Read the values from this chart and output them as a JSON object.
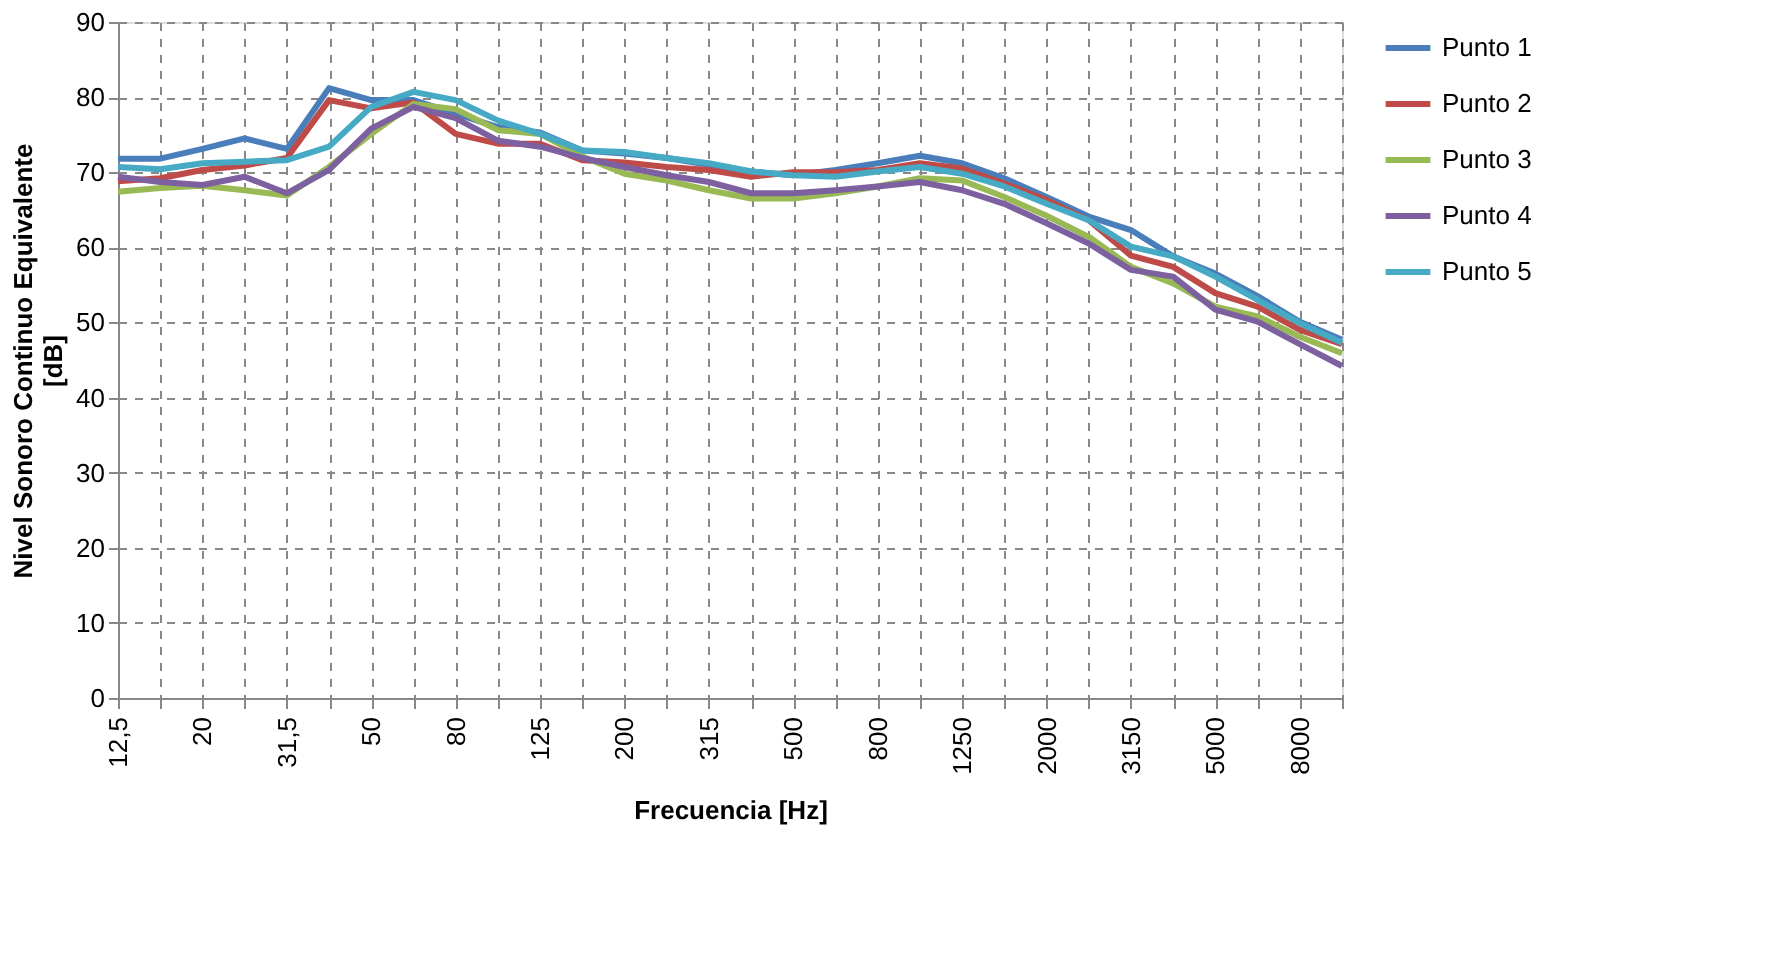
{
  "chart_data": {
    "type": "line",
    "xlabel": "Frecuencia [Hz]",
    "ylabel": "Nivel  Sonoro Continuo Equivalente [dB]",
    "categories": [
      "12,5",
      null,
      "20",
      null,
      "31,5",
      null,
      "50",
      null,
      "80",
      null,
      "125",
      null,
      "200",
      null,
      "315",
      null,
      "500",
      null,
      "800",
      null,
      "1250",
      null,
      "2000",
      null,
      "3150",
      null,
      "5000",
      null,
      "8000",
      null
    ],
    "series": [
      {
        "name": "Punto 1",
        "color": "#4a7ebb",
        "values": [
          71.8,
          71.8,
          73.1,
          74.5,
          73.1,
          81.2,
          79.6,
          79.6,
          77.8,
          76.0,
          75.3,
          72.9,
          72.5,
          71.9,
          71.0,
          70.1,
          69.6,
          70.3,
          71.2,
          72.2,
          71.2,
          69.2,
          66.7,
          64.1,
          62.3,
          58.8,
          56.5,
          53.5,
          50.1,
          47.7
        ]
      },
      {
        "name": "Punto 2",
        "color": "#be4b48",
        "values": [
          68.8,
          69.2,
          70.3,
          70.9,
          71.9,
          79.6,
          78.5,
          79.3,
          75.1,
          73.8,
          73.8,
          71.6,
          71.3,
          70.7,
          70.3,
          69.4,
          70.0,
          70.0,
          70.3,
          71.2,
          70.5,
          68.5,
          66.3,
          63.6,
          58.9,
          57.4,
          53.9,
          52.1,
          49.0,
          47.1
        ]
      },
      {
        "name": "Punto 3",
        "color": "#98b954",
        "values": [
          67.4,
          67.9,
          68.2,
          67.6,
          66.9,
          70.7,
          75.1,
          79.1,
          78.4,
          75.6,
          75.1,
          72.1,
          69.8,
          68.9,
          67.6,
          66.5,
          66.5,
          67.2,
          68.1,
          69.2,
          68.9,
          66.7,
          64.2,
          61.4,
          57.4,
          55.2,
          52.1,
          50.8,
          48.1,
          45.9
        ]
      },
      {
        "name": "Punto 4",
        "color": "#7d60a0",
        "values": [
          69.4,
          68.7,
          68.3,
          69.4,
          67.2,
          70.3,
          75.8,
          78.7,
          77.2,
          74.2,
          73.4,
          71.9,
          70.7,
          69.6,
          68.7,
          67.2,
          67.2,
          67.6,
          68.1,
          68.7,
          67.6,
          65.8,
          63.2,
          60.5,
          57.0,
          56.1,
          51.7,
          50.1,
          47.1,
          44.2
        ]
      },
      {
        "name": "Punto 5",
        "color": "#46aac5",
        "values": [
          70.7,
          70.4,
          71.2,
          71.4,
          71.6,
          73.4,
          78.7,
          80.7,
          79.6,
          76.9,
          75.1,
          72.9,
          72.7,
          71.9,
          71.2,
          70.1,
          69.6,
          69.4,
          70.1,
          70.7,
          69.8,
          68.1,
          65.8,
          63.6,
          60.1,
          58.8,
          56.1,
          53.0,
          49.9,
          47.3
        ]
      }
    ],
    "ylim": [
      0,
      90
    ],
    "yticks": [
      0,
      10,
      20,
      30,
      40,
      50,
      60,
      70,
      80,
      90
    ],
    "grid": true,
    "legend": "right",
    "line_style": "solid",
    "marker": "none"
  }
}
